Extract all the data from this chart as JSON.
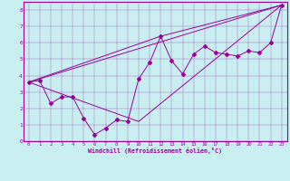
{
  "xlabel": "Windchill (Refroidissement éolien,°C)",
  "background_color": "#c8eef0",
  "line_color": "#990099",
  "grid_color": "#aadddd",
  "xlim": [
    -0.5,
    23.5
  ],
  "ylim": [
    0,
    8.5
  ],
  "xticks": [
    0,
    1,
    2,
    3,
    4,
    5,
    6,
    7,
    8,
    9,
    10,
    11,
    12,
    13,
    14,
    15,
    16,
    17,
    18,
    19,
    20,
    21,
    22,
    23
  ],
  "yticks": [
    0,
    1,
    2,
    3,
    4,
    5,
    6,
    7,
    8
  ],
  "series": [
    [
      0,
      3.6
    ],
    [
      1,
      3.7
    ],
    [
      2,
      2.3
    ],
    [
      3,
      2.7
    ],
    [
      4,
      2.7
    ],
    [
      5,
      1.4
    ],
    [
      6,
      0.4
    ],
    [
      7,
      0.8
    ],
    [
      8,
      1.3
    ],
    [
      9,
      1.2
    ],
    [
      10,
      3.8
    ],
    [
      11,
      4.8
    ],
    [
      12,
      6.4
    ],
    [
      13,
      4.9
    ],
    [
      14,
      4.1
    ],
    [
      15,
      5.3
    ],
    [
      16,
      5.8
    ],
    [
      17,
      5.4
    ],
    [
      18,
      5.3
    ],
    [
      19,
      5.2
    ],
    [
      20,
      5.5
    ],
    [
      21,
      5.4
    ],
    [
      22,
      6.0
    ],
    [
      23,
      8.3
    ]
  ],
  "line1": [
    [
      0,
      3.6
    ],
    [
      23,
      8.3
    ]
  ],
  "line2": [
    [
      0,
      3.6
    ],
    [
      10,
      1.2
    ],
    [
      23,
      8.3
    ]
  ],
  "line3": [
    [
      0,
      3.6
    ],
    [
      12,
      6.4
    ],
    [
      23,
      8.3
    ]
  ]
}
